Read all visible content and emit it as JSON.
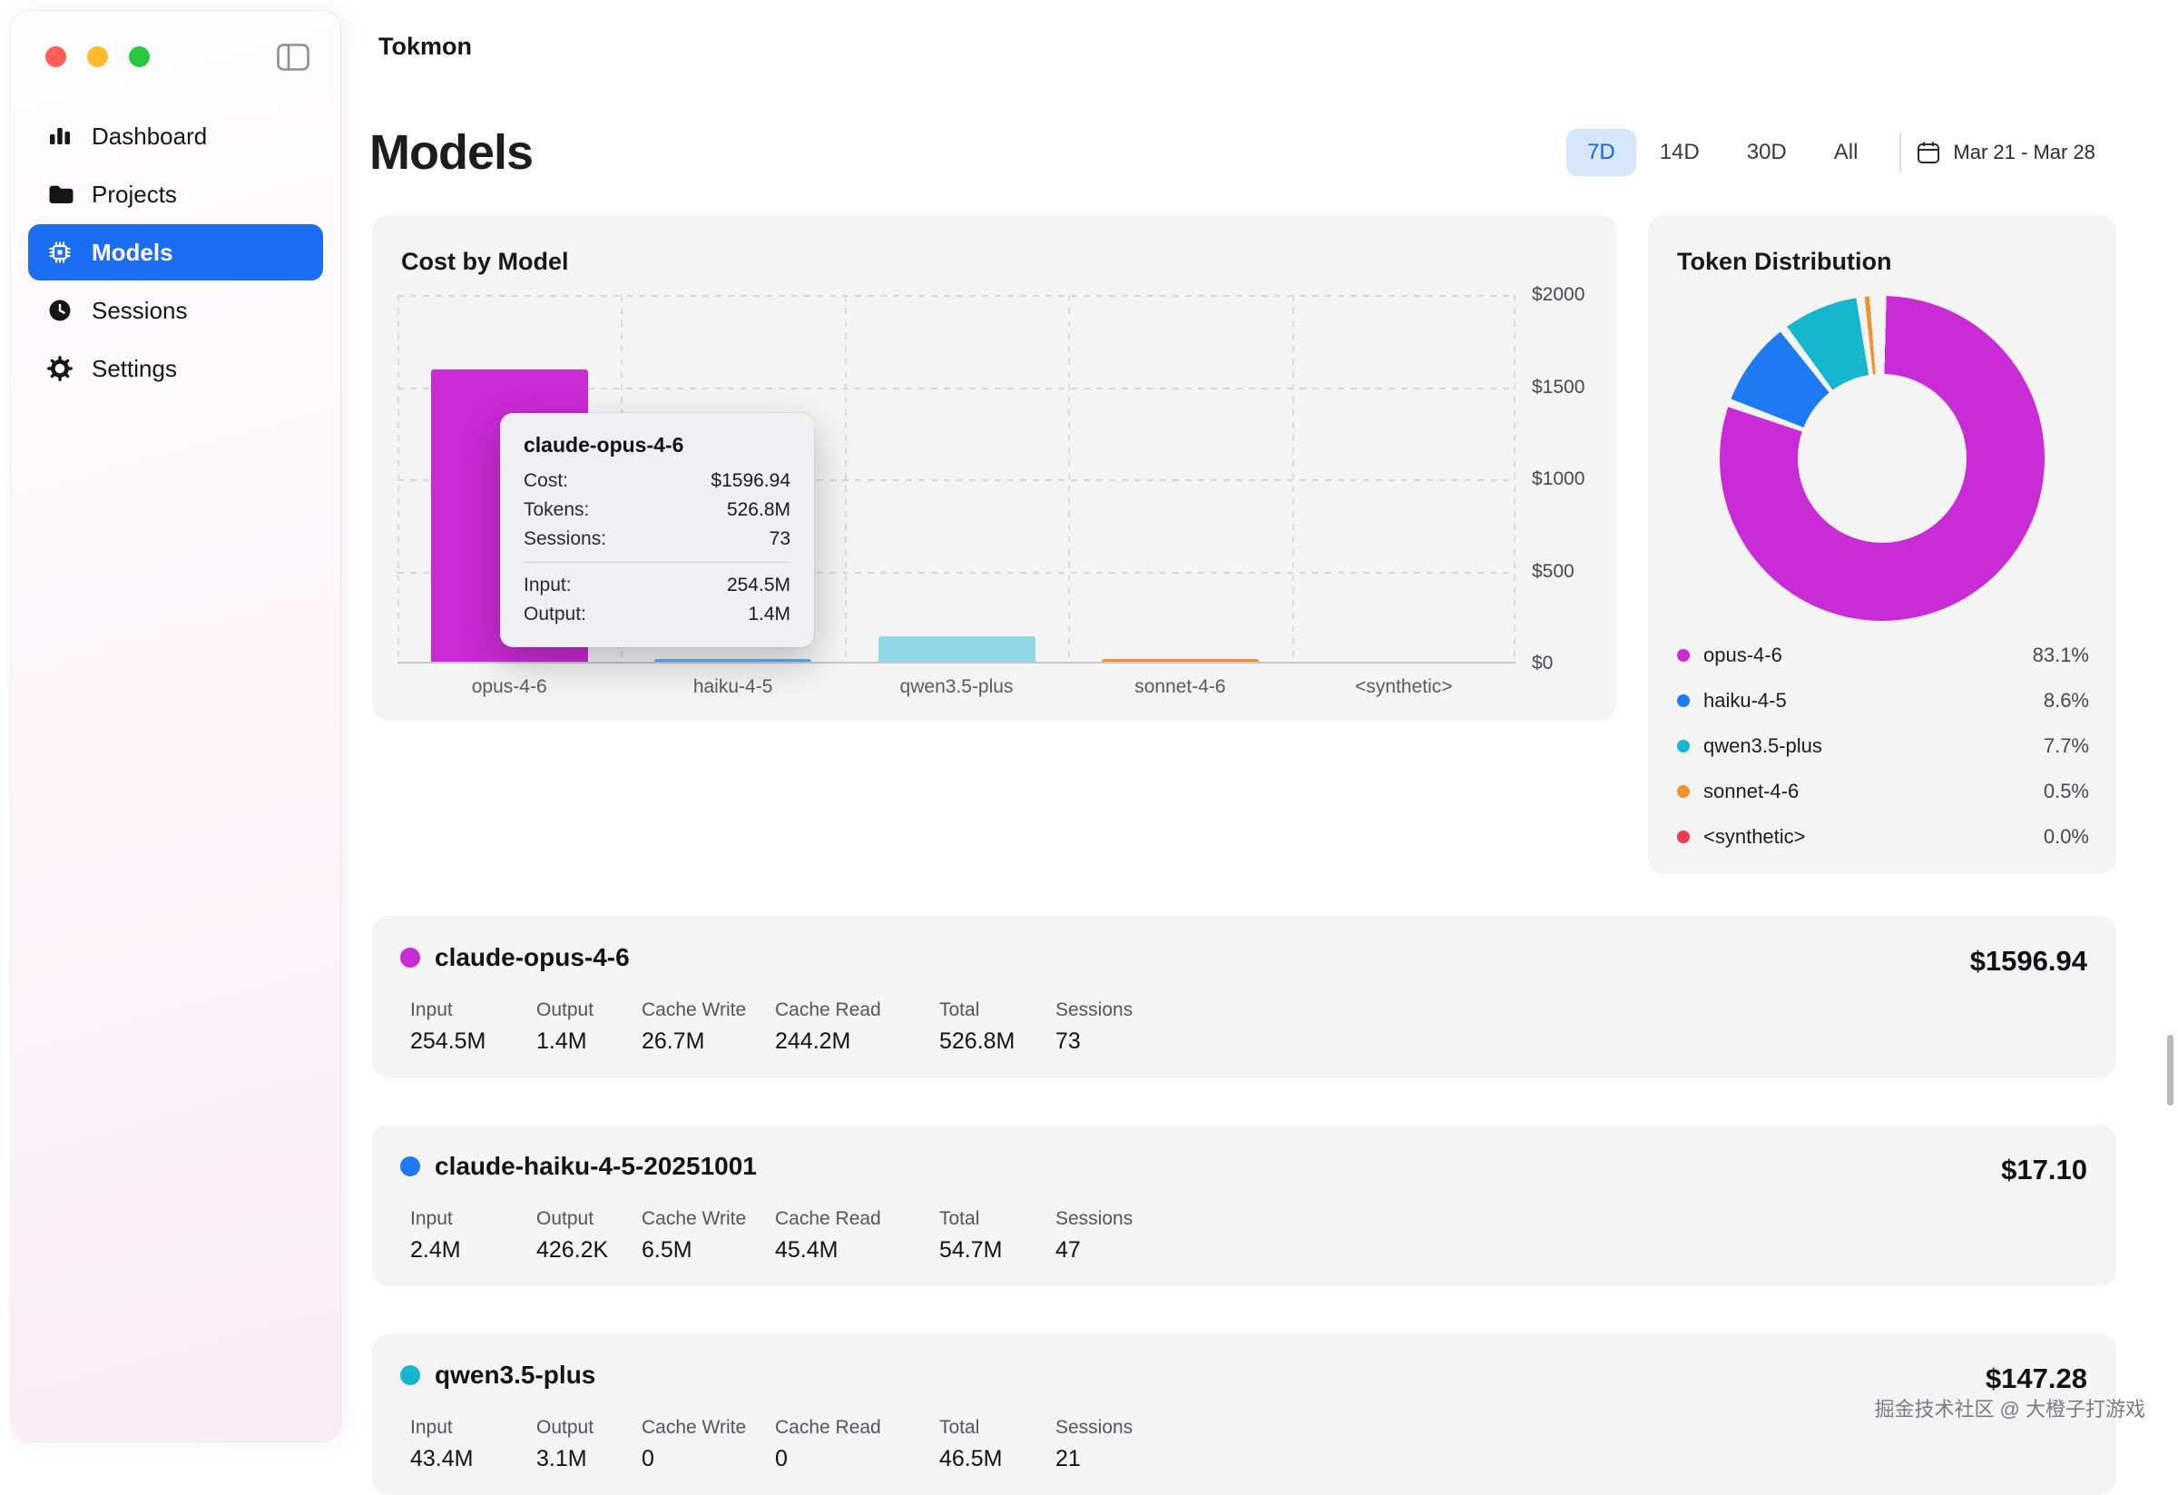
{
  "window": {
    "app_title": "Tokmon"
  },
  "sidebar": {
    "items": [
      {
        "label": "Dashboard",
        "icon": "bar-chart-icon",
        "selected": false
      },
      {
        "label": "Projects",
        "icon": "folder-icon",
        "selected": false
      },
      {
        "label": "Models",
        "icon": "chip-icon",
        "selected": true
      },
      {
        "label": "Sessions",
        "icon": "clock-icon",
        "selected": false
      },
      {
        "label": "Settings",
        "icon": "gear-icon",
        "selected": false
      }
    ]
  },
  "header": {
    "page_title": "Models",
    "ranges": [
      {
        "label": "7D",
        "selected": true
      },
      {
        "label": "14D",
        "selected": false
      },
      {
        "label": "30D",
        "selected": false
      },
      {
        "label": "All",
        "selected": false
      }
    ],
    "date_range": "Mar 21 - Mar 28"
  },
  "chart_data": [
    {
      "type": "bar",
      "title": "Cost by Model",
      "categories": [
        "opus-4-6",
        "haiku-4-5",
        "qwen3.5-plus",
        "sonnet-4-6",
        "<synthetic>"
      ],
      "values": [
        1596.94,
        17.1,
        147.28,
        8,
        0
      ],
      "colors": [
        "#c92bd6",
        "#5aaef8",
        "#8fd9e6",
        "#f0922c",
        "#ee3b4d"
      ],
      "ylim": [
        0,
        2000
      ],
      "ytick_labels": [
        "$2000",
        "$1500",
        "$1000",
        "$500",
        "$0"
      ],
      "grid": true,
      "legend": "none"
    },
    {
      "type": "pie",
      "title": "Token Distribution",
      "labels": [
        "opus-4-6",
        "haiku-4-5",
        "qwen3.5-plus",
        "sonnet-4-6",
        "<synthetic>"
      ],
      "values": [
        83.1,
        8.6,
        7.7,
        0.5,
        0.0
      ],
      "pct_labels": [
        "83.1%",
        "8.6%",
        "7.7%",
        "0.5%",
        "0.0%"
      ],
      "colors": [
        "#c92bd6",
        "#1e7af2",
        "#17b6cf",
        "#f0922c",
        "#ee3b4d"
      ],
      "donut": true,
      "legend": "bottom"
    }
  ],
  "tooltip": {
    "title": "claude-opus-4-6",
    "rows": [
      {
        "label": "Cost:",
        "value": "$1596.94"
      },
      {
        "label": "Tokens:",
        "value": "526.8M"
      },
      {
        "label": "Sessions:",
        "value": "73"
      }
    ],
    "rows2": [
      {
        "label": "Input:",
        "value": "254.5M"
      },
      {
        "label": "Output:",
        "value": "1.4M"
      }
    ]
  },
  "model_rows": [
    {
      "name": "claude-opus-4-6",
      "color": "#c92bd6",
      "price": "$1596.94",
      "stats": [
        {
          "label": "Input",
          "value": "254.5M"
        },
        {
          "label": "Output",
          "value": "1.4M"
        },
        {
          "label": "Cache Write",
          "value": "26.7M"
        },
        {
          "label": "Cache Read",
          "value": "244.2M"
        },
        {
          "label": "Total",
          "value": "526.8M"
        },
        {
          "label": "Sessions",
          "value": "73"
        }
      ]
    },
    {
      "name": "claude-haiku-4-5-20251001",
      "color": "#1e7af2",
      "price": "$17.10",
      "stats": [
        {
          "label": "Input",
          "value": "2.4M"
        },
        {
          "label": "Output",
          "value": "426.2K"
        },
        {
          "label": "Cache Write",
          "value": "6.5M"
        },
        {
          "label": "Cache Read",
          "value": "45.4M"
        },
        {
          "label": "Total",
          "value": "54.7M"
        },
        {
          "label": "Sessions",
          "value": "47"
        }
      ]
    },
    {
      "name": "qwen3.5-plus",
      "color": "#17b6cf",
      "price": "$147.28",
      "stats": [
        {
          "label": "Input",
          "value": "43.4M"
        },
        {
          "label": "Output",
          "value": "3.1M"
        },
        {
          "label": "Cache Write",
          "value": "0"
        },
        {
          "label": "Cache Read",
          "value": "0"
        },
        {
          "label": "Total",
          "value": "46.5M"
        },
        {
          "label": "Sessions",
          "value": "21"
        }
      ]
    }
  ],
  "watermark": "掘金技术社区 @ 大橙子打游戏"
}
